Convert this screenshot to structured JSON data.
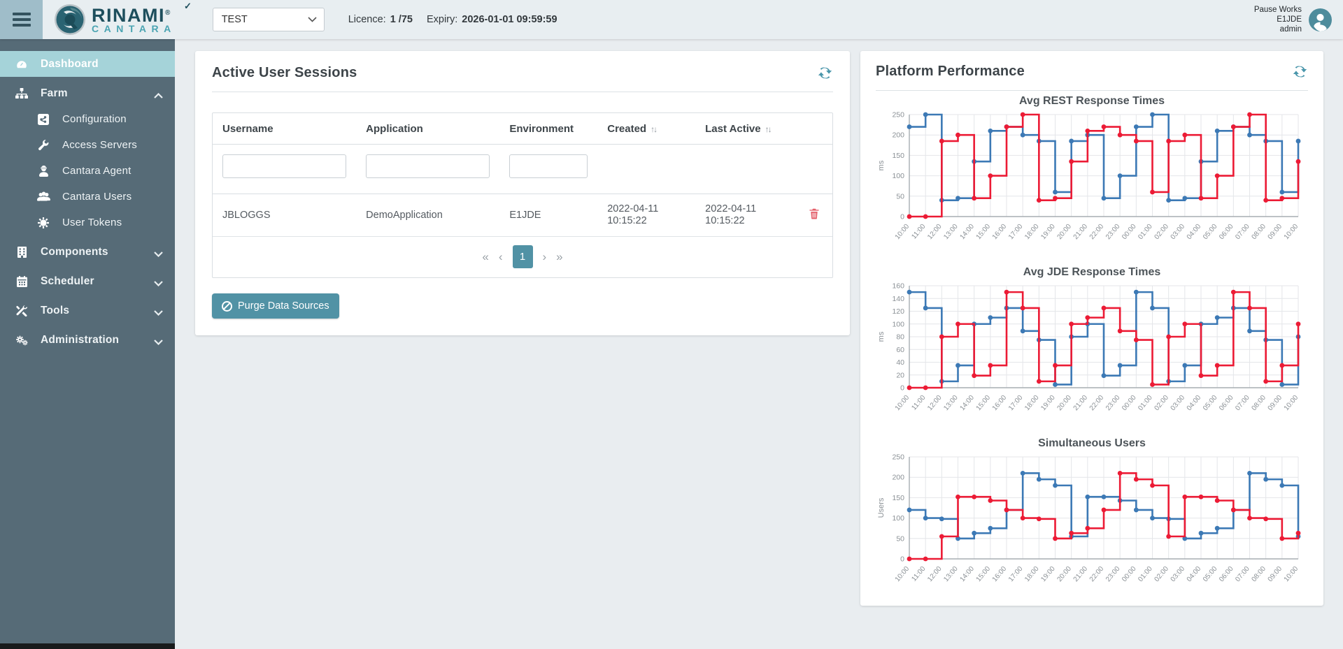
{
  "header": {
    "brand": {
      "name_top": "RINAMI",
      "name_bottom": "CANTARA",
      "registered": "®",
      "check": "✓"
    },
    "env_select": {
      "value": "TEST"
    },
    "licence_label": "Licence:",
    "licence_value": "1 /75",
    "expiry_label": "Expiry:",
    "expiry_value": "2026-01-01 09:59:59",
    "user": {
      "action": "Pause Works",
      "environment": "E1JDE",
      "role": "admin"
    }
  },
  "sidebar": {
    "items": [
      {
        "label": "Dashboard",
        "icon": "gauge-icon",
        "active": true
      },
      {
        "label": "Farm",
        "icon": "sitemap-icon",
        "expanded": true
      },
      {
        "label": "Configuration",
        "icon": "share-square-icon",
        "child": true
      },
      {
        "label": "Access Servers",
        "icon": "wrench-icon",
        "child": true
      },
      {
        "label": "Cantara Agent",
        "icon": "agent-icon",
        "child": true
      },
      {
        "label": "Cantara Users",
        "icon": "users-icon",
        "child": true
      },
      {
        "label": "User Tokens",
        "icon": "token-icon",
        "child": true
      },
      {
        "label": "Components",
        "icon": "building-icon",
        "collapsible": true
      },
      {
        "label": "Scheduler",
        "icon": "calendar-icon",
        "collapsible": true
      },
      {
        "label": "Tools",
        "icon": "tools-icon",
        "collapsible": true
      },
      {
        "label": "Administration",
        "icon": "gears-icon",
        "collapsible": true
      }
    ]
  },
  "sessions_panel": {
    "title": "Active User Sessions",
    "table": {
      "columns": [
        "Username",
        "Application",
        "Environment",
        "Created",
        "Last Active"
      ],
      "sort_icon_glyph": "↑↓",
      "rows": [
        {
          "username": "JBLOGGS",
          "application": "DemoApplication",
          "environment": "E1JDE",
          "created": "2022-04-11 10:15:22",
          "last_active": "2022-04-11 10:15:22"
        }
      ]
    },
    "pagination": {
      "first": "«",
      "prev": "‹",
      "page": "1",
      "next": "›",
      "last": "»"
    },
    "purge_button": "Purge Data Sources"
  },
  "performance_panel": {
    "title": "Platform Performance"
  },
  "colors": {
    "accent_teal": "#5192a5",
    "sidebar_bg": "#566b77",
    "sidebar_active_bg": "#a5d3d9",
    "chart_blue": "#3c79b5",
    "chart_red": "#ec1b35",
    "danger_red": "#e4606b"
  },
  "chart_data": [
    {
      "type": "line",
      "step": true,
      "title": "Avg REST Response Times",
      "ylabel": "ms",
      "ylim": [
        0,
        250
      ],
      "ytick_step": 50,
      "grid": true,
      "legend": "none",
      "categories": [
        "10:00",
        "11:00",
        "12:00",
        "13:00",
        "14:00",
        "15:00",
        "16:00",
        "17:00",
        "18:00",
        "19:00",
        "20:00",
        "21:00",
        "22:00",
        "23:00",
        "00:00",
        "01:00",
        "02:00",
        "03:00",
        "04:00",
        "05:00",
        "06:00",
        "07:00",
        "08:00",
        "09:00",
        "10:00"
      ],
      "series": [
        {
          "name": "blue-series",
          "color": "#3c79b5",
          "values": [
            220,
            250,
            40,
            45,
            135,
            210,
            220,
            200,
            185,
            60,
            185,
            200,
            45,
            100,
            220,
            250,
            40,
            45,
            135,
            210,
            220,
            200,
            185,
            60,
            185
          ]
        },
        {
          "name": "red-series",
          "color": "#ec1b35",
          "values": [
            0,
            0,
            185,
            200,
            45,
            100,
            220,
            250,
            40,
            45,
            135,
            210,
            220,
            200,
            185,
            60,
            185,
            200,
            45,
            100,
            220,
            250,
            40,
            45,
            135
          ]
        }
      ]
    },
    {
      "type": "line",
      "step": true,
      "title": "Avg JDE Response Times",
      "ylabel": "ms",
      "ylim": [
        0,
        160
      ],
      "ytick_step": 20,
      "grid": true,
      "legend": "none",
      "categories": [
        "10:00",
        "11:00",
        "12:00",
        "13:00",
        "14:00",
        "15:00",
        "16:00",
        "17:00",
        "18:00",
        "19:00",
        "20:00",
        "21:00",
        "22:00",
        "23:00",
        "00:00",
        "01:00",
        "02:00",
        "03:00",
        "04:00",
        "05:00",
        "06:00",
        "07:00",
        "08:00",
        "09:00",
        "10:00"
      ],
      "series": [
        {
          "name": "blue-series",
          "color": "#3c79b5",
          "values": [
            150,
            125,
            10,
            35,
            100,
            110,
            125,
            89,
            75,
            5,
            80,
            100,
            19,
            35,
            150,
            125,
            10,
            35,
            100,
            110,
            125,
            89,
            75,
            5,
            80
          ]
        },
        {
          "name": "red-series",
          "color": "#ec1b35",
          "values": [
            0,
            0,
            80,
            100,
            19,
            35,
            150,
            125,
            10,
            35,
            100,
            110,
            125,
            89,
            75,
            5,
            80,
            100,
            19,
            35,
            150,
            125,
            10,
            35,
            100
          ]
        }
      ]
    },
    {
      "type": "line",
      "step": true,
      "title": "Simultaneous Users",
      "ylabel": "Users",
      "ylim": [
        0,
        250
      ],
      "ytick_step": 50,
      "grid": true,
      "legend": "none",
      "categories": [
        "10:00",
        "11:00",
        "12:00",
        "13:00",
        "14:00",
        "15:00",
        "16:00",
        "17:00",
        "18:00",
        "19:00",
        "20:00",
        "21:00",
        "22:00",
        "23:00",
        "00:00",
        "01:00",
        "02:00",
        "03:00",
        "04:00",
        "05:00",
        "06:00",
        "07:00",
        "08:00",
        "09:00",
        "10:00"
      ],
      "series": [
        {
          "name": "blue-series",
          "color": "#3c79b5",
          "values": [
            120,
            100,
            98,
            50,
            63,
            75,
            120,
            210,
            195,
            180,
            55,
            152,
            152,
            143,
            120,
            100,
            98,
            50,
            63,
            75,
            120,
            210,
            195,
            180,
            55
          ]
        },
        {
          "name": "red-series",
          "color": "#ec1b35",
          "values": [
            0,
            0,
            55,
            152,
            152,
            143,
            120,
            100,
            98,
            50,
            63,
            75,
            120,
            210,
            195,
            180,
            55,
            152,
            152,
            143,
            120,
            100,
            98,
            50,
            63
          ]
        }
      ]
    }
  ]
}
